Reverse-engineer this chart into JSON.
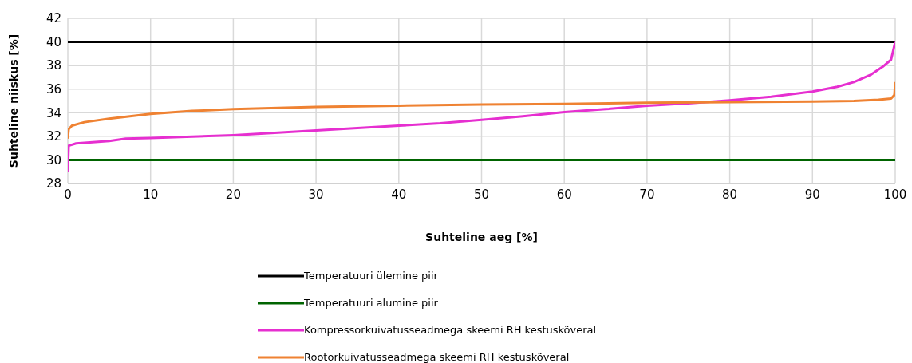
{
  "chart_data": {
    "type": "line",
    "xlabel": "Suhteline aeg [%]",
    "ylabel": "Suhteline niiskus [%]",
    "xlim": [
      0,
      100
    ],
    "xticks": [
      0,
      10,
      20,
      30,
      40,
      50,
      60,
      70,
      80,
      90,
      100
    ],
    "ylim": [
      28,
      42
    ],
    "yticks": [
      28,
      30,
      32,
      34,
      36,
      38,
      40,
      42
    ],
    "grid": true,
    "legend": "bottom",
    "series": [
      {
        "name": "Temperatuuri ülemine piir",
        "color": "#000000",
        "x": [
          0,
          100
        ],
        "values": [
          40,
          40
        ]
      },
      {
        "name": "Temperatuuri alumine piir",
        "color": "#006400",
        "x": [
          0,
          100
        ],
        "values": [
          30,
          30
        ]
      },
      {
        "name": "Kompressorkuivatusseadmega skeemi RH kestuskõveral",
        "color": "#e62fd0",
        "x": [
          0,
          0.1,
          1,
          5,
          7,
          10,
          20,
          30,
          40,
          45,
          50,
          55,
          60,
          65,
          70,
          75,
          80,
          85,
          90,
          93,
          95,
          97,
          98.5,
          99.5,
          100
        ],
        "values": [
          29,
          31.2,
          31.4,
          31.6,
          31.8,
          31.85,
          32.1,
          32.5,
          32.9,
          33.1,
          33.4,
          33.7,
          34.05,
          34.3,
          34.6,
          34.8,
          35.05,
          35.35,
          35.8,
          36.2,
          36.6,
          37.2,
          37.9,
          38.5,
          40
        ]
      },
      {
        "name": "Rootorkuivatusseadmega skeemi RH kestuskõveral",
        "color": "#ef8232",
        "x": [
          0,
          0.1,
          0.5,
          2,
          5,
          10,
          15,
          20,
          30,
          40,
          50,
          60,
          70,
          80,
          90,
          95,
          98,
          99.5,
          99.9,
          100
        ],
        "values": [
          31.8,
          32.6,
          32.9,
          33.2,
          33.5,
          33.9,
          34.15,
          34.3,
          34.5,
          34.6,
          34.7,
          34.75,
          34.85,
          34.9,
          34.95,
          35.0,
          35.1,
          35.2,
          35.5,
          36.6
        ]
      }
    ]
  }
}
